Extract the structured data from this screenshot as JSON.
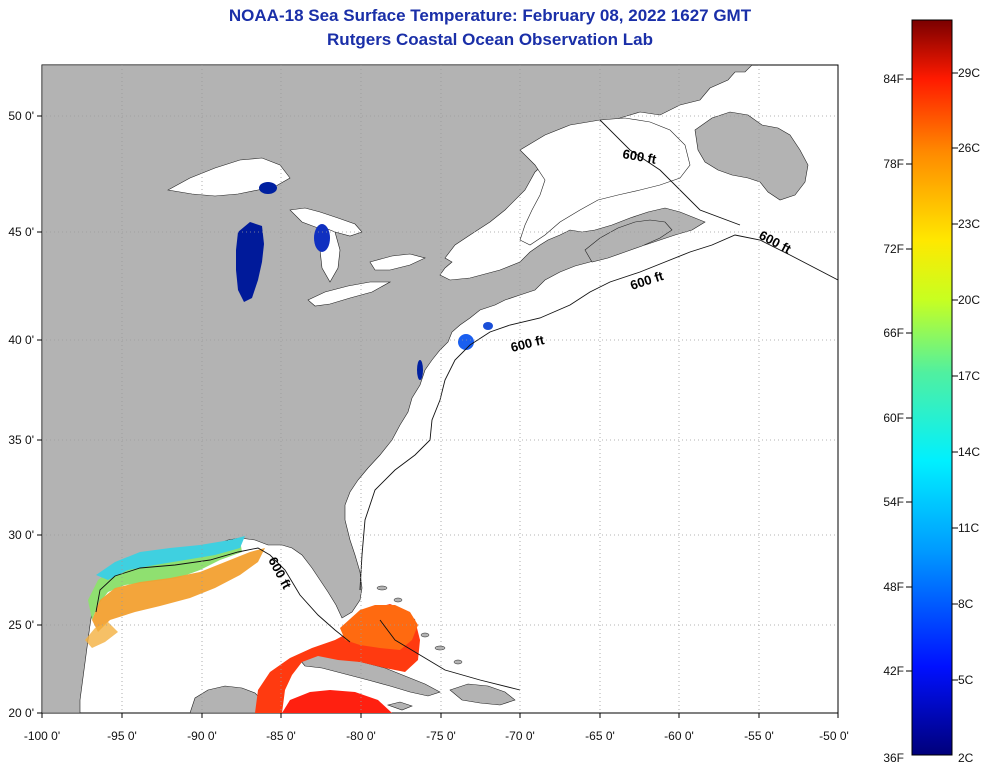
{
  "title_line1": "NOAA-18 Sea Surface Temperature:  February 08, 2022 1627 GMT",
  "title_line2": "Rutgers Coastal Ocean Observation Lab",
  "x_ticks": [
    "-100 0'",
    "-95 0'",
    "-90 0'",
    "-85 0'",
    "-80 0'",
    "-75 0'",
    "-70 0'",
    "-65 0'",
    "-60 0'",
    "-55 0'",
    "-50 0'"
  ],
  "y_ticks": [
    "50 0'",
    "45 0'",
    "40 0'",
    "35 0'",
    "30 0'",
    "25 0'",
    "20 0'"
  ],
  "contour_labels": [
    "600 ft",
    "600 ft",
    "600 ft",
    "600 ft",
    "600 ft"
  ],
  "colorbar": {
    "fahrenheit": [
      "84F",
      "78F",
      "72F",
      "66F",
      "60F",
      "54F",
      "48F",
      "42F",
      "36F"
    ],
    "celsius": [
      "29C",
      "26C",
      "23C",
      "20C",
      "17C",
      "14C",
      "11C",
      "8C",
      "5C",
      "2C"
    ]
  },
  "colors": {
    "land": "#b3b3b3",
    "title": "#1a2fa8",
    "gridline": "#9a9a9a"
  }
}
